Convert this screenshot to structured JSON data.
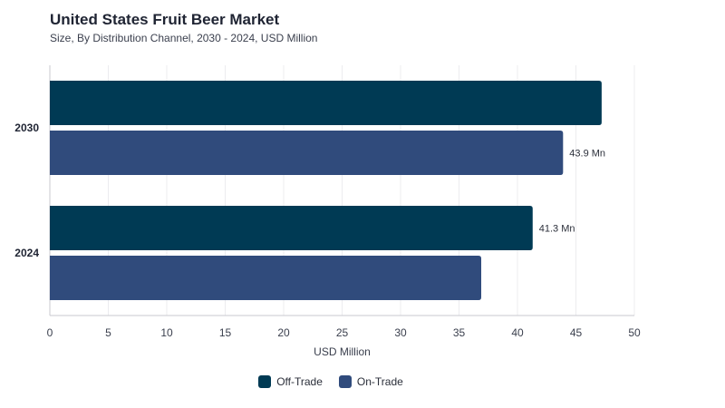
{
  "chart_data": {
    "type": "bar",
    "orientation": "horizontal",
    "title": "United States Fruit Beer Market",
    "subtitle": "Size, By Distribution Channel, 2030 - 2024, USD Million",
    "xlabel": "USD Million",
    "ylabel": "",
    "xlim": [
      0,
      50
    ],
    "xticks": [
      "0",
      "5",
      "10",
      "15",
      "20",
      "25",
      "30",
      "35",
      "40",
      "45",
      "50"
    ],
    "categories": [
      "2030",
      "2024"
    ],
    "series": [
      {
        "name": "Off-Trade",
        "color": "#003a54",
        "values": [
          47.2,
          41.3
        ],
        "labels": [
          "",
          "41.3 Mn"
        ]
      },
      {
        "name": "On-Trade",
        "color": "#304b7c",
        "values": [
          43.9,
          36.9
        ],
        "labels": [
          "43.9 Mn",
          ""
        ]
      }
    ],
    "grid": true,
    "legend_position": "bottom"
  }
}
